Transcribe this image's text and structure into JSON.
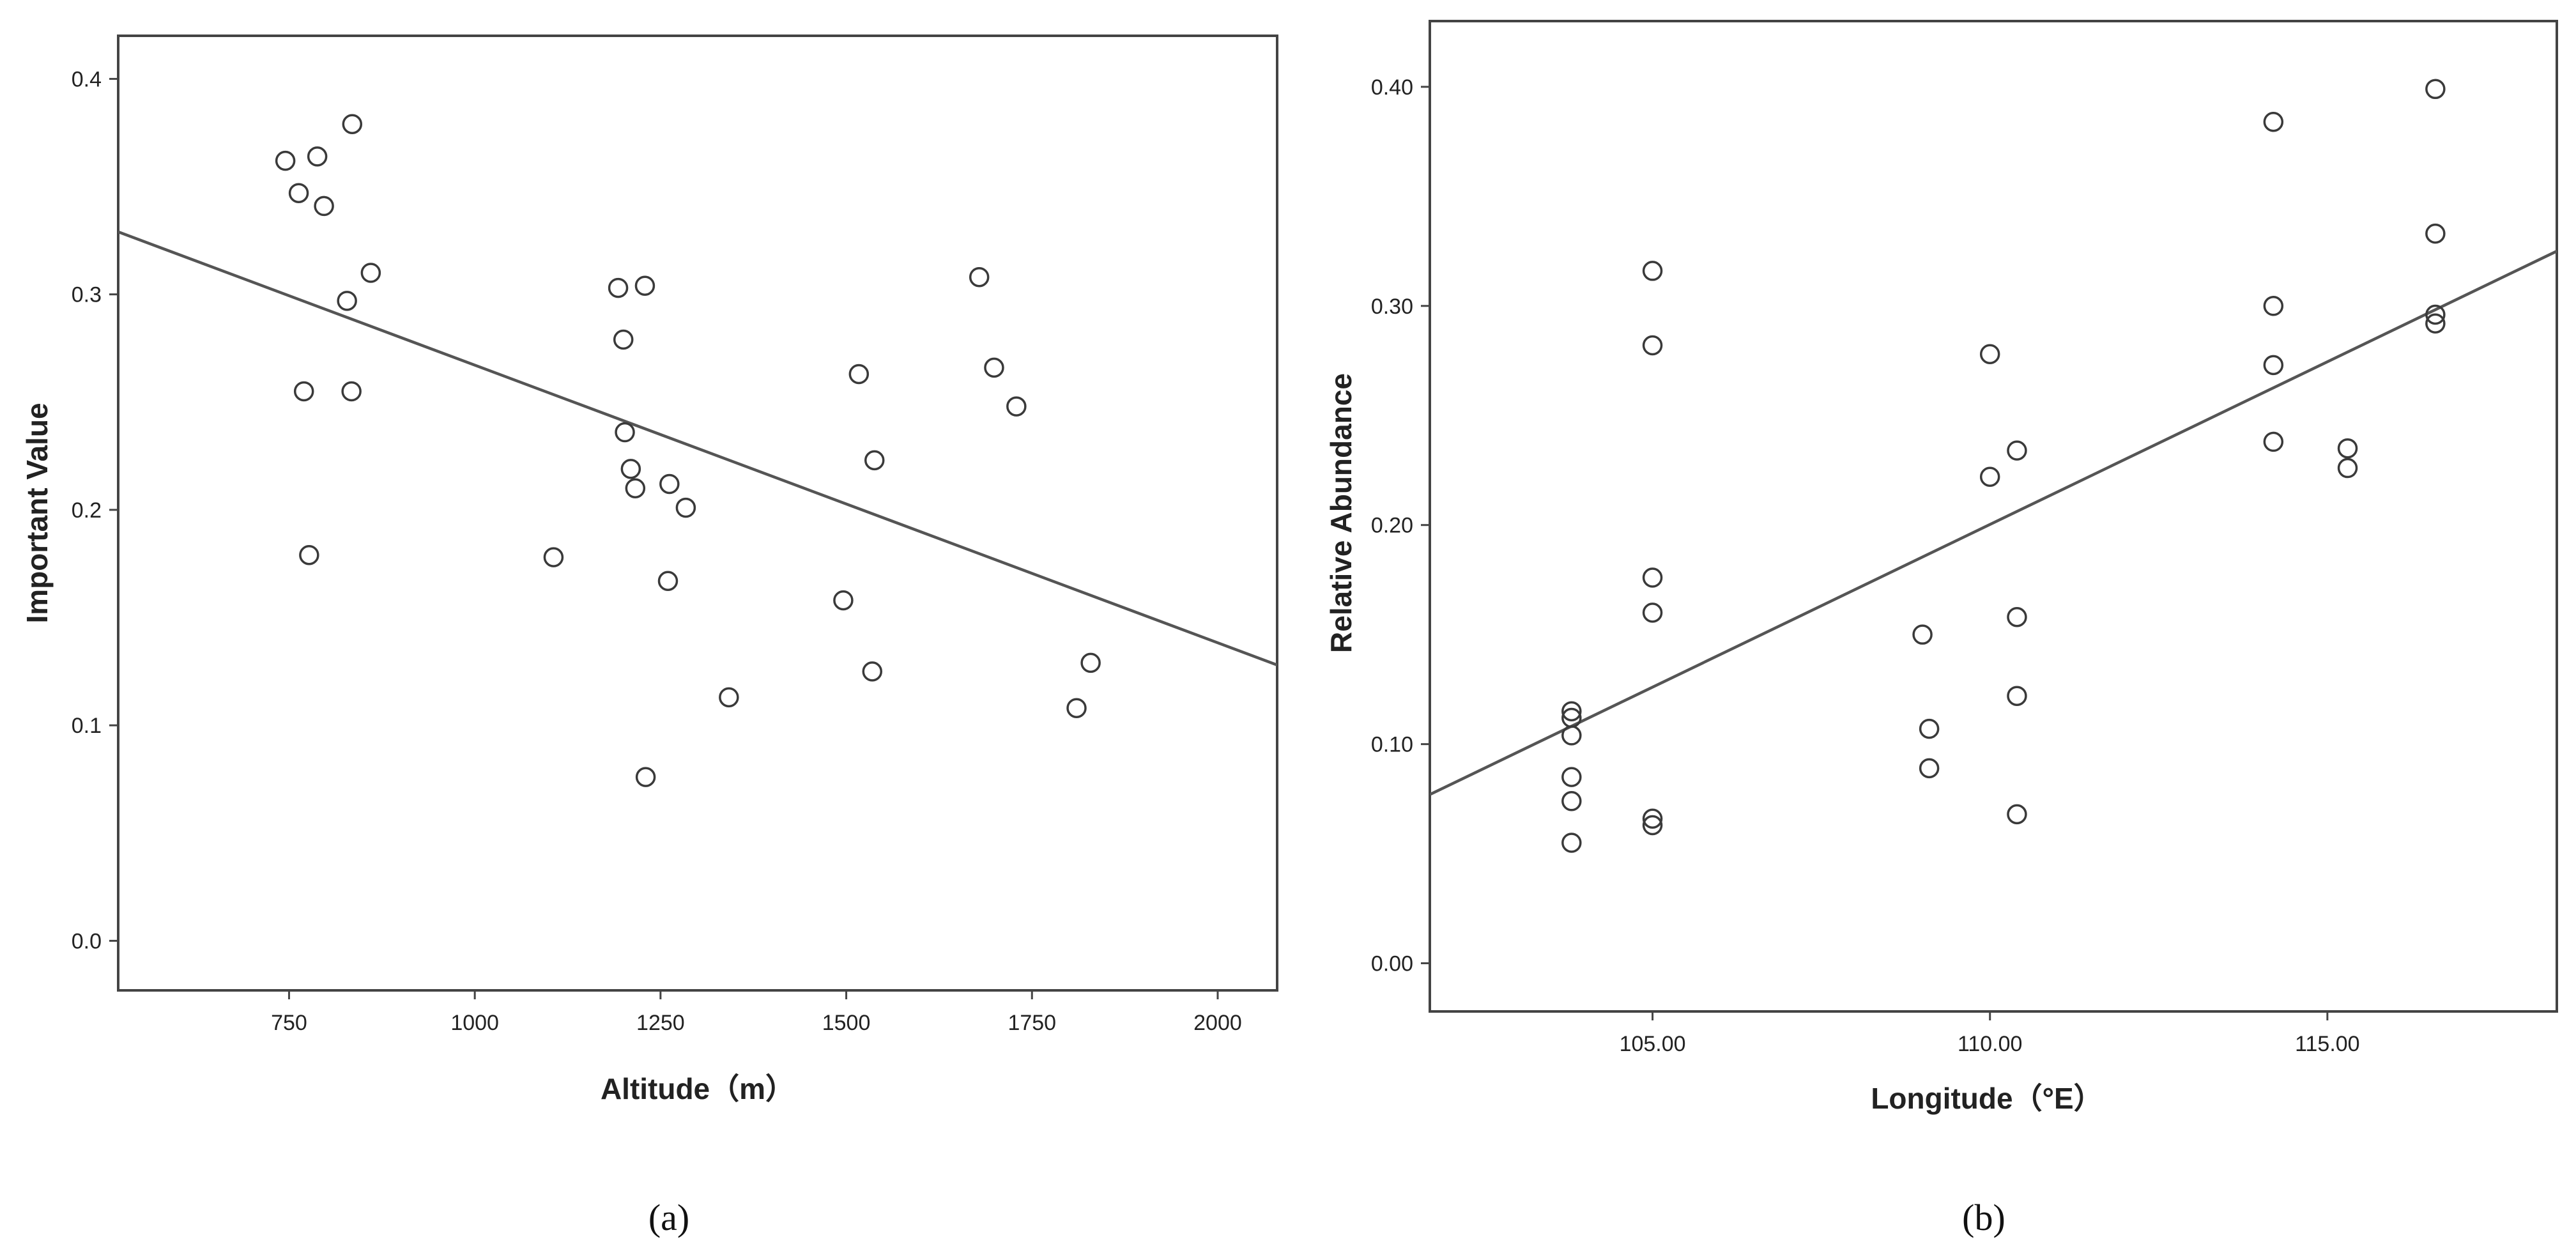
{
  "chart_data": [
    {
      "type": "scatter",
      "panel": "a",
      "caption": "(a)",
      "title": "",
      "xlabel": "Altitude（m）",
      "ylabel": "Important Value",
      "xlim": [
        520,
        2080
      ],
      "ylim": [
        -0.023,
        0.42
      ],
      "xticks": [
        750,
        1000,
        1250,
        1500,
        1750,
        2000
      ],
      "xtick_labels": [
        "750",
        "1000",
        "1250",
        "1500",
        "1750",
        "2000"
      ],
      "yticks": [
        0.0,
        0.1,
        0.2,
        0.3,
        0.4
      ],
      "ytick_labels": [
        "0.0",
        "0.1",
        "0.2",
        "0.3",
        "0.4"
      ],
      "fit_line": {
        "x": [
          520,
          2080
        ],
        "y": [
          0.329,
          0.128
        ]
      },
      "points": [
        {
          "x": 745,
          "y": 0.362
        },
        {
          "x": 763,
          "y": 0.347
        },
        {
          "x": 788,
          "y": 0.364
        },
        {
          "x": 797,
          "y": 0.341
        },
        {
          "x": 835,
          "y": 0.379
        },
        {
          "x": 860,
          "y": 0.31
        },
        {
          "x": 828,
          "y": 0.297
        },
        {
          "x": 770,
          "y": 0.255
        },
        {
          "x": 834,
          "y": 0.255
        },
        {
          "x": 777,
          "y": 0.179
        },
        {
          "x": 1106,
          "y": 0.178
        },
        {
          "x": 1193,
          "y": 0.303
        },
        {
          "x": 1229,
          "y": 0.304
        },
        {
          "x": 1200,
          "y": 0.279
        },
        {
          "x": 1202,
          "y": 0.236
        },
        {
          "x": 1210,
          "y": 0.219
        },
        {
          "x": 1216,
          "y": 0.21
        },
        {
          "x": 1262,
          "y": 0.212
        },
        {
          "x": 1284,
          "y": 0.201
        },
        {
          "x": 1260,
          "y": 0.167
        },
        {
          "x": 1230,
          "y": 0.076
        },
        {
          "x": 1342,
          "y": 0.113
        },
        {
          "x": 1517,
          "y": 0.263
        },
        {
          "x": 1538,
          "y": 0.223
        },
        {
          "x": 1496,
          "y": 0.158
        },
        {
          "x": 1535,
          "y": 0.125
        },
        {
          "x": 1679,
          "y": 0.308
        },
        {
          "x": 1699,
          "y": 0.266
        },
        {
          "x": 1729,
          "y": 0.248
        },
        {
          "x": 1829,
          "y": 0.129
        },
        {
          "x": 1810,
          "y": 0.108
        }
      ]
    },
    {
      "type": "scatter",
      "panel": "b",
      "caption": "(b)",
      "title": "",
      "xlabel": "Longitude（°E）",
      "ylabel": "Relative Abundance",
      "xlim": [
        101.7,
        118.4
      ],
      "ylim": [
        -0.022,
        0.43
      ],
      "xticks": [
        105,
        110,
        115
      ],
      "xtick_labels": [
        "105.00",
        "110.00",
        "115.00"
      ],
      "yticks": [
        0.0,
        0.1,
        0.2,
        0.3,
        0.4
      ],
      "ytick_labels": [
        "0.00",
        "0.10",
        "0.20",
        "0.30",
        "0.40"
      ],
      "fit_line": {
        "x": [
          101.7,
          118.4
        ],
        "y": [
          0.077,
          0.325
        ]
      },
      "points": [
        {
          "x": 103.8,
          "y": 0.115
        },
        {
          "x": 103.8,
          "y": 0.112
        },
        {
          "x": 103.8,
          "y": 0.104
        },
        {
          "x": 103.8,
          "y": 0.085
        },
        {
          "x": 103.8,
          "y": 0.074
        },
        {
          "x": 103.8,
          "y": 0.055
        },
        {
          "x": 105.0,
          "y": 0.316
        },
        {
          "x": 105.0,
          "y": 0.282
        },
        {
          "x": 105.0,
          "y": 0.176
        },
        {
          "x": 105.0,
          "y": 0.16
        },
        {
          "x": 105.0,
          "y": 0.066
        },
        {
          "x": 105.0,
          "y": 0.063
        },
        {
          "x": 109.0,
          "y": 0.15
        },
        {
          "x": 109.1,
          "y": 0.107
        },
        {
          "x": 109.1,
          "y": 0.089
        },
        {
          "x": 110.0,
          "y": 0.278
        },
        {
          "x": 110.0,
          "y": 0.222
        },
        {
          "x": 110.4,
          "y": 0.234
        },
        {
          "x": 110.4,
          "y": 0.158
        },
        {
          "x": 110.4,
          "y": 0.122
        },
        {
          "x": 110.4,
          "y": 0.068
        },
        {
          "x": 114.2,
          "y": 0.384
        },
        {
          "x": 114.2,
          "y": 0.3
        },
        {
          "x": 114.2,
          "y": 0.273
        },
        {
          "x": 114.2,
          "y": 0.238
        },
        {
          "x": 115.3,
          "y": 0.235
        },
        {
          "x": 115.3,
          "y": 0.226
        },
        {
          "x": 116.6,
          "y": 0.399
        },
        {
          "x": 116.6,
          "y": 0.333
        },
        {
          "x": 116.6,
          "y": 0.296
        },
        {
          "x": 116.6,
          "y": 0.292
        }
      ]
    }
  ]
}
